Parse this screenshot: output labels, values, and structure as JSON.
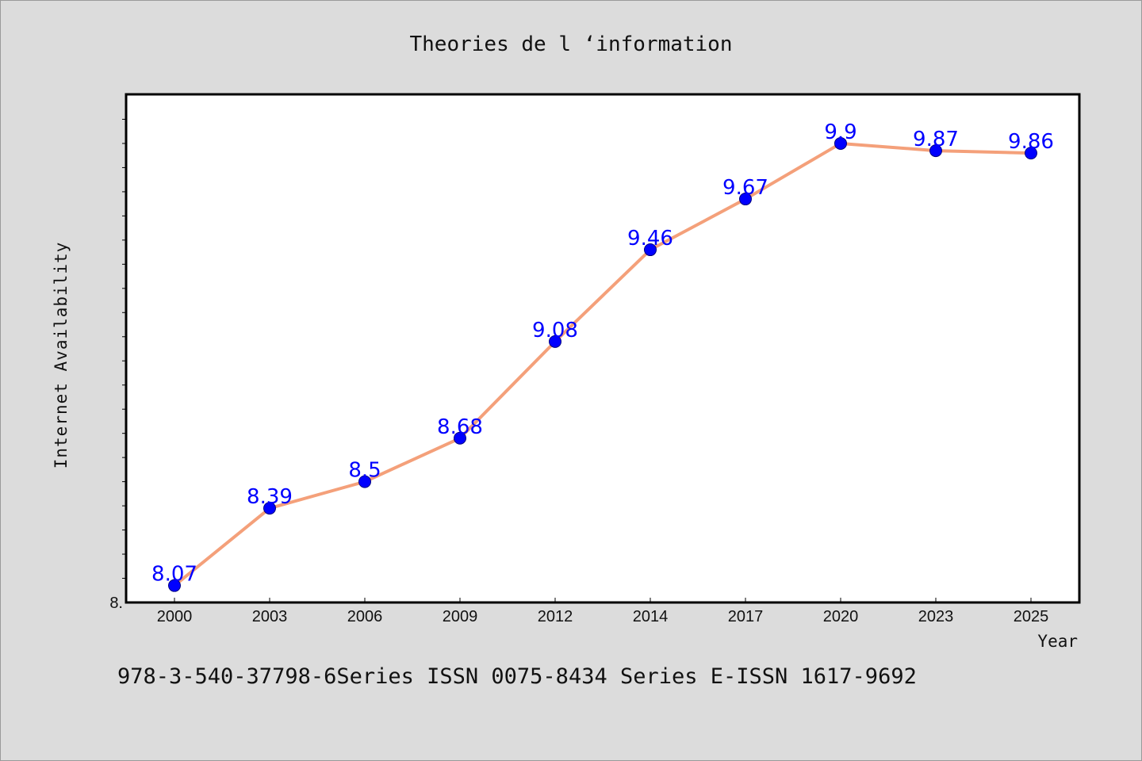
{
  "chart_data": {
    "type": "line",
    "title": "Theories de l ‘information",
    "xlabel": "Year",
    "ylabel": "Internet Availability",
    "categories": [
      "2000",
      "2003",
      "2006",
      "2009",
      "2012",
      "2014",
      "2017",
      "2020",
      "2023",
      "2025"
    ],
    "values": [
      8.07,
      8.39,
      8.5,
      8.68,
      9.08,
      9.46,
      9.67,
      9.9,
      9.87,
      9.86
    ],
    "ylim": [
      8.0,
      10.1
    ],
    "y_tick_labels": [
      "8."
    ],
    "show_data_labels": true,
    "grid": false,
    "legend": "none",
    "line_color": "#f4a07a",
    "marker_color": "#0000ff",
    "label_color": "#0000ff"
  },
  "footer_text": "978-3-540-37798-6Series ISSN 0075-8434 Series E-ISSN 1617-9692"
}
